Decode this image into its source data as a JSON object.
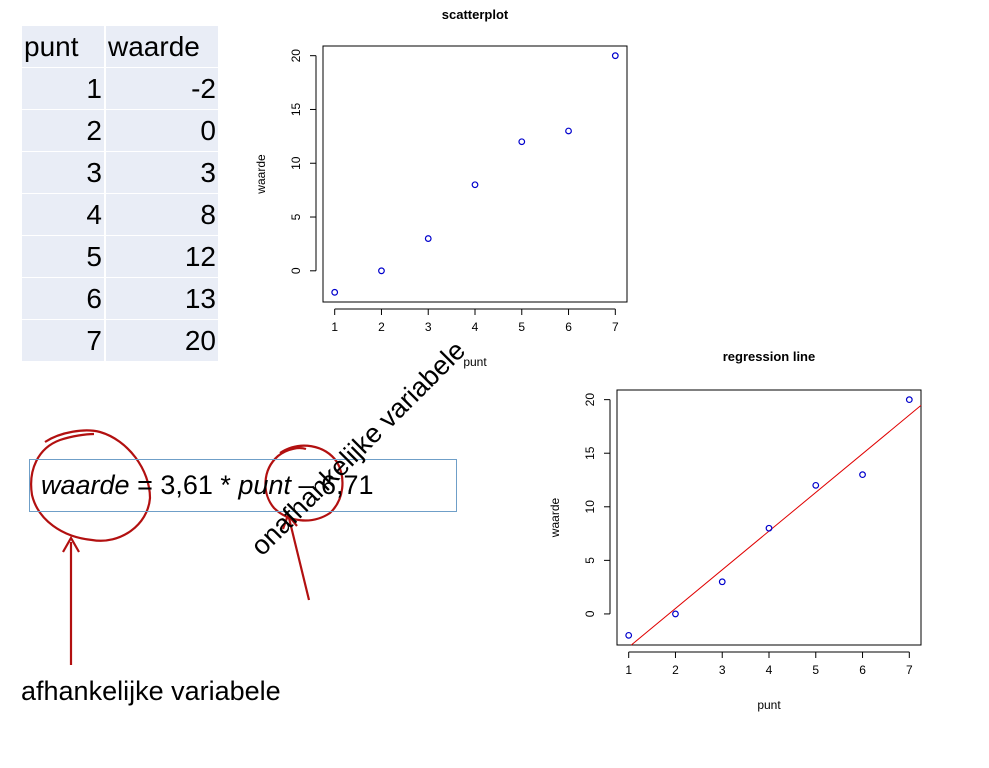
{
  "table": {
    "headers": [
      "punt",
      "waarde"
    ],
    "rows": [
      [
        "1",
        "-2"
      ],
      [
        "2",
        "0"
      ],
      [
        "3",
        "3"
      ],
      [
        "4",
        "8"
      ],
      [
        "5",
        "12"
      ],
      [
        "6",
        "13"
      ],
      [
        "7",
        "20"
      ]
    ]
  },
  "formula": {
    "var1": "waarde",
    "mid": " = 3,61 * ",
    "var2": "punt",
    "tail": " – 6,71"
  },
  "annotations": {
    "dependent": "afhankelijke variabele",
    "independent": "onafhankelijke variabele"
  },
  "colors": {
    "points": "#0000cc",
    "regression": "#e00000",
    "ink": "#b21010",
    "table_bg": "#e9edf6"
  },
  "chart_data": [
    {
      "type": "scatter",
      "title": "scatterplot",
      "xlabel": "punt",
      "ylabel": "waarde",
      "x": [
        1,
        2,
        3,
        4,
        5,
        6,
        7
      ],
      "y": [
        -2,
        0,
        3,
        8,
        12,
        13,
        20
      ],
      "xticks": [
        1,
        2,
        3,
        4,
        5,
        6,
        7
      ],
      "yticks": [
        0,
        5,
        10,
        15,
        20
      ],
      "xlim": [
        0.75,
        7.25
      ],
      "ylim": [
        -2.9,
        20.9
      ],
      "grid": false
    },
    {
      "type": "scatter",
      "title": "regression line",
      "xlabel": "punt",
      "ylabel": "waarde",
      "x": [
        1,
        2,
        3,
        4,
        5,
        6,
        7
      ],
      "y": [
        -2,
        0,
        3,
        8,
        12,
        13,
        20
      ],
      "xticks": [
        1,
        2,
        3,
        4,
        5,
        6,
        7
      ],
      "yticks": [
        0,
        5,
        10,
        15,
        20
      ],
      "xlim": [
        0.75,
        7.25
      ],
      "ylim": [
        -2.9,
        20.9
      ],
      "regression": {
        "slope": 3.61,
        "intercept": -6.71
      },
      "grid": false
    }
  ]
}
